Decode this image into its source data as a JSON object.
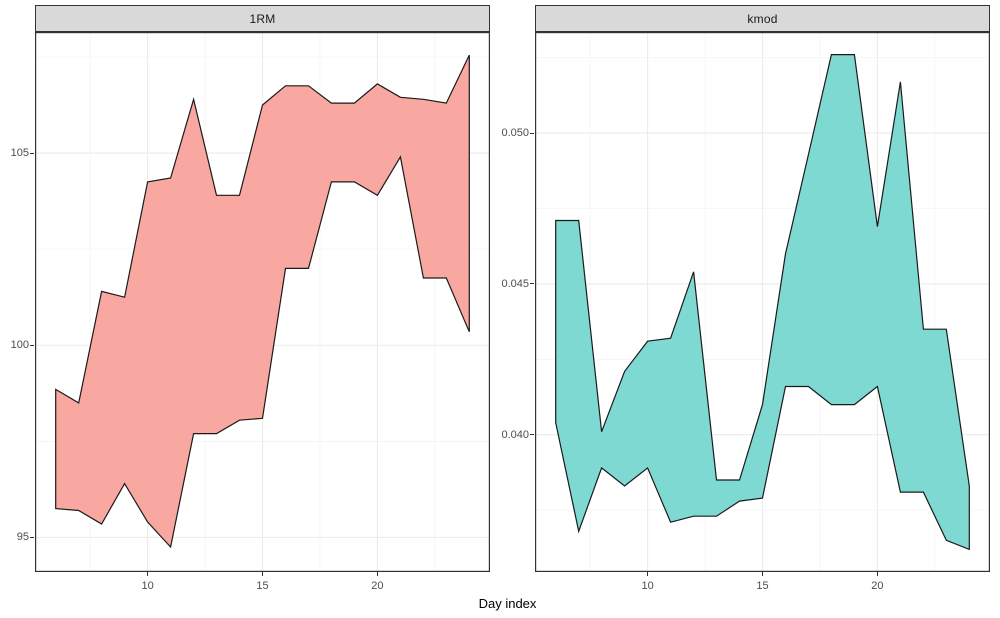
{
  "x_axis": {
    "label": "Day index",
    "ticks": [
      10,
      15,
      20
    ],
    "tick_labels": [
      "10",
      "15",
      "20"
    ],
    "minor_breaks": [
      7.5,
      12.5,
      17.5,
      22.5
    ],
    "xlim": [
      5.1,
      24.9
    ]
  },
  "chart_data": [
    {
      "type": "area",
      "facet_title": "1RM",
      "x": [
        6,
        7,
        8,
        9,
        10,
        11,
        12,
        13,
        14,
        15,
        16,
        17,
        18,
        19,
        20,
        21,
        22,
        23,
        24
      ],
      "series": [
        {
          "name": "upper",
          "values": [
            98.85,
            98.5,
            101.4,
            101.25,
            104.25,
            104.35,
            106.4,
            103.9,
            103.9,
            106.25,
            106.75,
            106.75,
            106.3,
            106.3,
            106.8,
            106.45,
            106.4,
            106.3,
            107.55
          ]
        },
        {
          "name": "lower",
          "values": [
            95.75,
            95.7,
            95.35,
            96.4,
            95.4,
            94.75,
            97.7,
            97.7,
            98.05,
            98.1,
            102.0,
            102.0,
            104.25,
            104.25,
            103.9,
            104.9,
            101.75,
            101.75,
            100.35
          ]
        }
      ],
      "fill": "#F9A7A1",
      "ylim": [
        94.1,
        108.15
      ],
      "yticks": [
        95,
        100,
        105
      ],
      "ytick_labels": [
        "95",
        "100",
        "105"
      ],
      "yminor_breaks": [
        97.5,
        102.5,
        107.5
      ]
    },
    {
      "type": "area",
      "facet_title": "kmod",
      "x": [
        6,
        7,
        8,
        9,
        10,
        11,
        12,
        13,
        14,
        15,
        16,
        17,
        18,
        19,
        20,
        21,
        22,
        23,
        24
      ],
      "series": [
        {
          "name": "upper",
          "values": [
            0.0471,
            0.0471,
            0.0401,
            0.0421,
            0.0431,
            0.0432,
            0.0454,
            0.0385,
            0.0385,
            0.041,
            0.046,
            0.0493,
            0.0526,
            0.0526,
            0.0469,
            0.0517,
            0.0435,
            0.0435,
            0.0383
          ]
        },
        {
          "name": "lower",
          "values": [
            0.0404,
            0.0368,
            0.0389,
            0.0383,
            0.0389,
            0.0371,
            0.0373,
            0.0373,
            0.0378,
            0.0379,
            0.0416,
            0.0416,
            0.041,
            0.041,
            0.0416,
            0.0381,
            0.0381,
            0.0365,
            0.0362
          ]
        }
      ],
      "fill": "#7FD9D3",
      "ylim": [
        0.03545,
        0.05335
      ],
      "yticks": [
        0.04,
        0.045,
        0.05
      ],
      "ytick_labels": [
        "0.040",
        "0.045",
        "0.050"
      ],
      "yminor_breaks": [
        0.0375,
        0.0425,
        0.0475,
        0.0525
      ]
    }
  ],
  "style": {
    "ribbon_line_color": "#1A1A1A",
    "grid_major_color": "#EBEBEB",
    "grid_minor_color": "#F4F4F4",
    "panel_border_color": "#333333",
    "panel_background": "#FFFFFF",
    "strip_fill": "#D9D9D9",
    "tick_label_color": "#4D4D4D",
    "tick_mark_color": "#333333"
  }
}
